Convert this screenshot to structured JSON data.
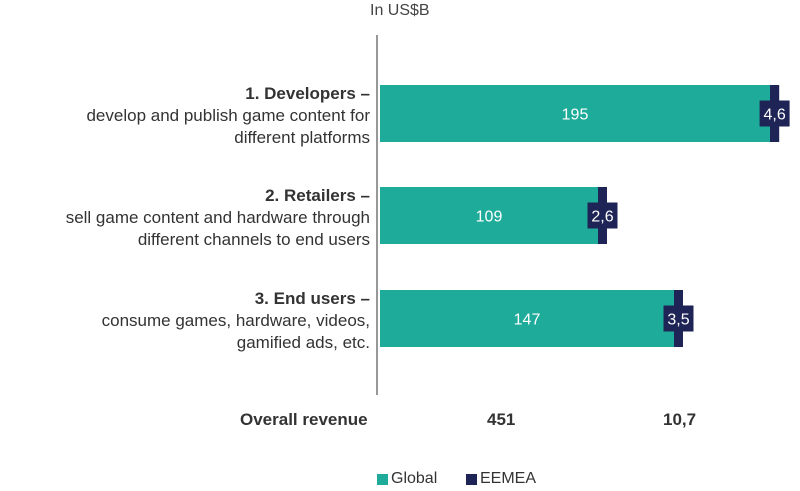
{
  "chart_data": {
    "type": "bar",
    "orientation": "horizontal",
    "stacked": true,
    "unit_label": "In US$B",
    "categories": [
      {
        "title": "1. Developers –",
        "description": [
          "develop and publish game content for",
          "different platforms"
        ]
      },
      {
        "title": "2. Retailers –",
        "description": [
          "sell game content and hardware through",
          "different channels to end users"
        ]
      },
      {
        "title": "3. End users –",
        "description": [
          "consume games, hardware, videos,",
          "gamified ads, etc."
        ]
      }
    ],
    "series": [
      {
        "name": "Global",
        "color": "#1fab99",
        "values": [
          195,
          109,
          147
        ],
        "labels": [
          "195",
          "109",
          "147"
        ]
      },
      {
        "name": "EEMEA",
        "color": "#1e2456",
        "values": [
          4.6,
          2.6,
          3.5
        ],
        "labels": [
          "4,6",
          "2,6",
          "3,5"
        ]
      }
    ],
    "totals": {
      "label": "Overall revenue",
      "global": "451",
      "eemea": "10,7"
    },
    "legend_position": "bottom",
    "grid": false
  }
}
